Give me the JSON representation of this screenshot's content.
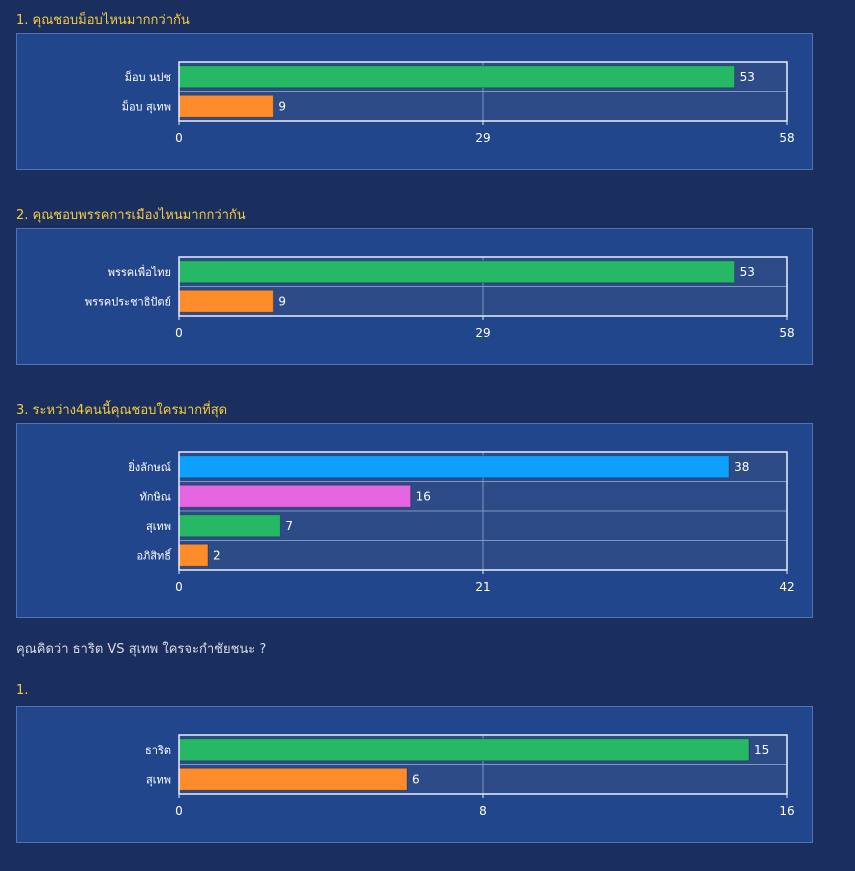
{
  "headings": {
    "q1": "1. คุณชอบม็อบไหนมากกว่ากัน",
    "q2": "2. คุณชอบพรรคการเมืองไหนมากกว่ากัน",
    "q3": "3. ระหว่าง4คนนี้คุณชอบใครมากที่สุด",
    "section2": "คุณคิดว่า  ธาริต VS สุเทพ  ใครจะกำชัยชนะ ?",
    "q4": "1."
  },
  "colors": {
    "green": "#26b864",
    "orange": "#ff8c2b",
    "blue": "#0da0ff",
    "magenta": "#e566e0",
    "plot_bg": "#2d4b86",
    "panel_bg": "#22468c"
  },
  "chart_data": [
    {
      "type": "bar",
      "orientation": "horizontal",
      "categories": [
        "ม็อบ นปช",
        "ม็อบ สุเทพ"
      ],
      "values": [
        53,
        9
      ],
      "colors": [
        "#26b864",
        "#ff8c2b"
      ],
      "xlim": [
        0,
        58
      ],
      "ticks": [
        0,
        29,
        58
      ],
      "grid": true
    },
    {
      "type": "bar",
      "orientation": "horizontal",
      "categories": [
        "พรรคเพื่อไทย",
        "พรรคประชาธิปัตย์"
      ],
      "values": [
        53,
        9
      ],
      "colors": [
        "#26b864",
        "#ff8c2b"
      ],
      "xlim": [
        0,
        58
      ],
      "ticks": [
        0,
        29,
        58
      ],
      "grid": true
    },
    {
      "type": "bar",
      "orientation": "horizontal",
      "categories": [
        "ยิ่งลักษณ์",
        "ทักษิณ",
        "สุเทพ",
        "อภิสิทธิ์"
      ],
      "values": [
        38,
        16,
        7,
        2
      ],
      "colors": [
        "#0da0ff",
        "#e566e0",
        "#26b864",
        "#ff8c2b"
      ],
      "xlim": [
        0,
        42
      ],
      "ticks": [
        0,
        21,
        42
      ],
      "grid": true
    },
    {
      "type": "bar",
      "orientation": "horizontal",
      "categories": [
        "ธาริต",
        "สุเทพ"
      ],
      "values": [
        15,
        6
      ],
      "colors": [
        "#26b864",
        "#ff8c2b"
      ],
      "xlim": [
        0,
        16
      ],
      "ticks": [
        0,
        8,
        16
      ],
      "grid": true
    }
  ]
}
